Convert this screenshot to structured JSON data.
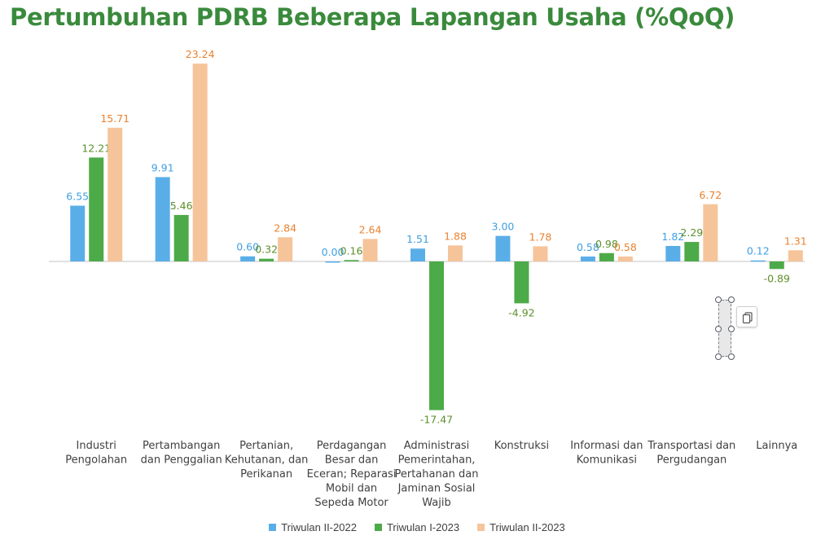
{
  "title": "Pertumbuhan PDRB Beberapa Lapangan Usaha (%QoQ)",
  "chart_data": {
    "type": "bar",
    "title": "Pertumbuhan PDRB Beberapa Lapangan Usaha (%QoQ)",
    "categories": [
      [
        "Industri",
        "Pengolahan"
      ],
      [
        "Pertambangan",
        "dan Penggalian"
      ],
      [
        "Pertanian,",
        "Kehutanan, dan",
        "Perikanan"
      ],
      [
        "Perdagangan",
        "Besar dan",
        "Eceran; Reparasi",
        "Mobil dan",
        "Sepeda Motor"
      ],
      [
        "Administrasi",
        "Pemerintahan,",
        "Pertahanan dan",
        "Jaminan Sosial",
        "Wajib"
      ],
      [
        "Konstruksi"
      ],
      [
        "Informasi dan",
        "Komunikasi"
      ],
      [
        "Transportasi dan",
        "Pergudangan"
      ],
      [
        "Lainnya"
      ]
    ],
    "series": [
      {
        "name": "Triwulan II-2022",
        "color": "#5aaee8",
        "label_color": "#3f9fe0",
        "values": [
          6.55,
          9.91,
          0.6,
          0.0,
          1.51,
          3.0,
          0.58,
          1.82,
          0.12
        ]
      },
      {
        "name": "Triwulan I-2023",
        "color": "#4daa48",
        "label_color": "#5c8f2a",
        "values": [
          12.21,
          5.46,
          0.32,
          0.16,
          -17.47,
          -4.92,
          0.98,
          2.29,
          -0.89
        ]
      },
      {
        "name": "Triwulan II-2023",
        "color": "#f6c49a",
        "label_color": "#e9822f",
        "values": [
          15.71,
          23.24,
          2.84,
          2.64,
          1.88,
          1.78,
          0.58,
          6.72,
          1.31
        ]
      }
    ],
    "ylim": [
      -19.5,
      25
    ],
    "legend_position": "bottom",
    "grid": false
  }
}
